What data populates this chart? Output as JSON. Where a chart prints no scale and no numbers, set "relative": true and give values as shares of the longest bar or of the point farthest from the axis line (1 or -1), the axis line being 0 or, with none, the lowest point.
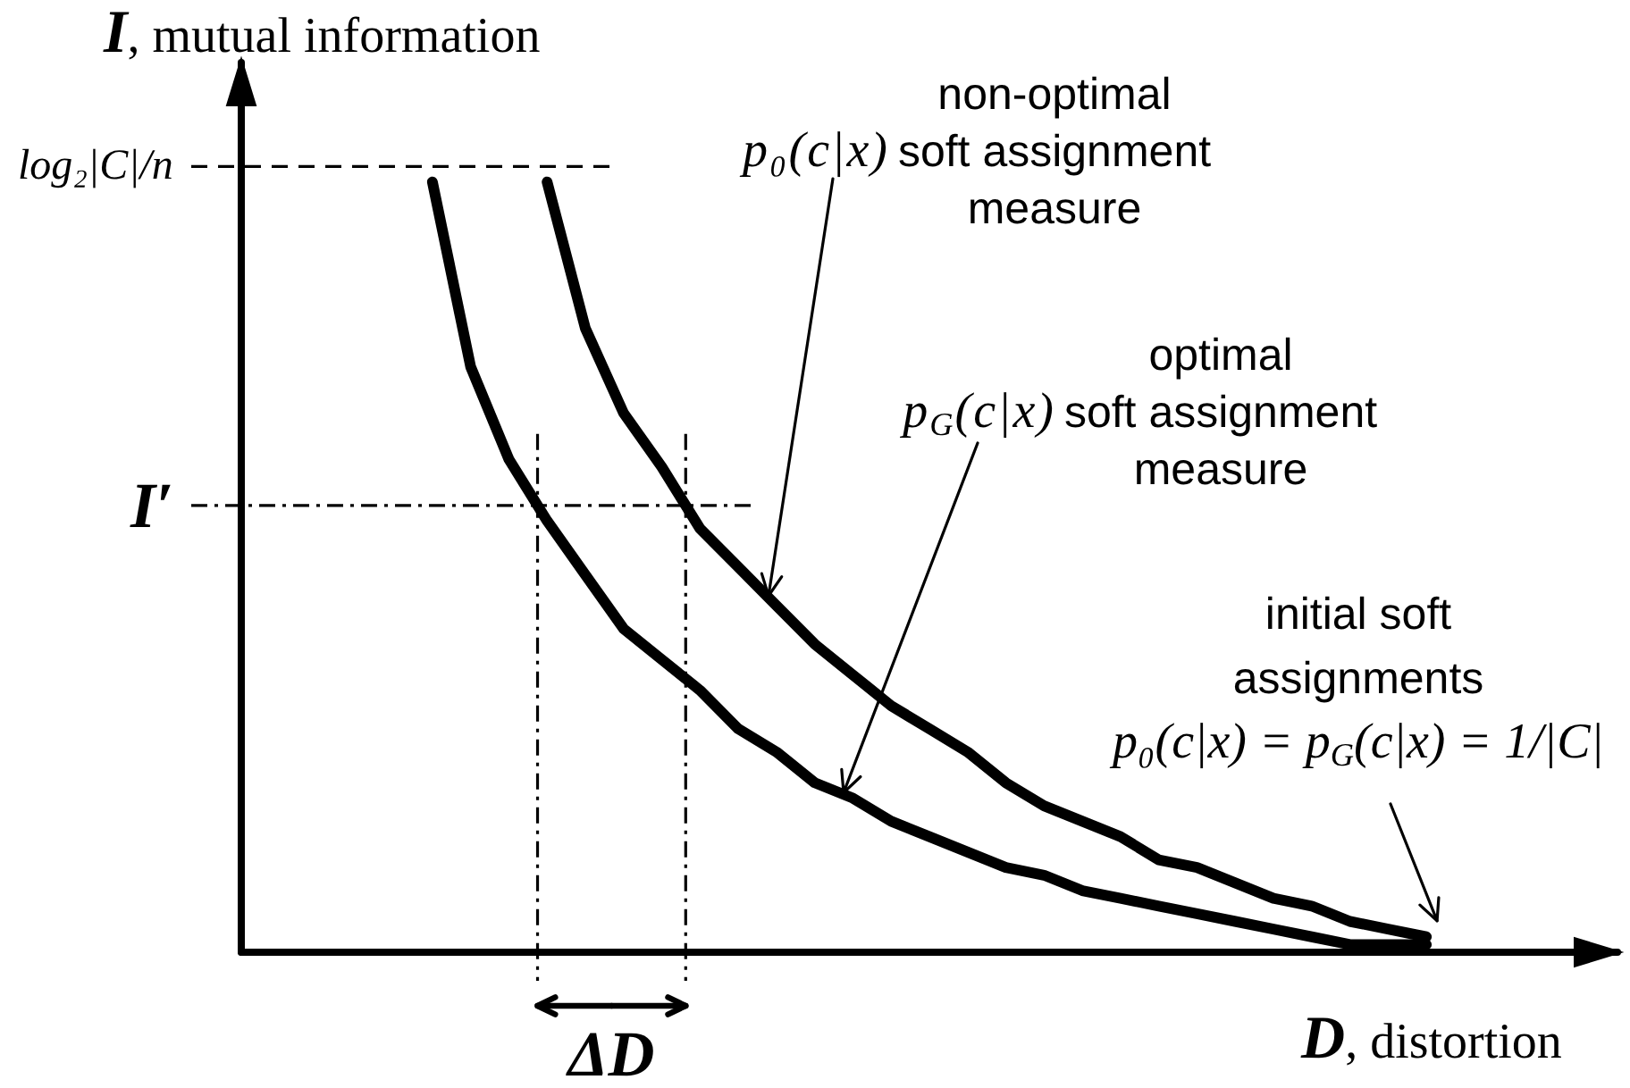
{
  "chart_data": {
    "type": "line",
    "relative": true,
    "xlabel": "D, distortion",
    "ylabel": "I, mutual information",
    "categories": [
      null,
      null,
      null,
      null,
      null,
      null,
      null,
      null,
      null,
      null,
      null,
      null,
      null,
      null,
      null,
      null,
      null,
      null,
      null,
      null,
      null,
      null,
      null,
      null,
      null,
      null,
      null,
      null,
      null,
      null,
      null,
      null,
      null,
      null,
      null,
      null,
      null
    ],
    "series": [
      {
        "name": "non-optimal\np₀(c|x) soft assignment\nmeasure",
        "color": "#000000",
        "values": [
          null,
          null,
          null,
          null,
          null,
          null,
          null,
          null,
          1.0,
          0.81,
          0.7,
          0.63,
          0.55,
          0.5,
          0.45,
          0.4,
          0.36,
          0.32,
          0.29,
          0.26,
          0.22,
          0.19,
          0.17,
          0.15,
          0.12,
          0.11,
          0.09,
          0.07,
          0.06,
          0.04,
          0.03,
          0.02,
          null,
          null,
          null,
          null,
          null
        ]
      },
      {
        "name": "optimal\np$_{G}$(c|x) soft assignment\nmeasure",
        "color": "#000000",
        "values": [
          null,
          null,
          null,
          null,
          null,
          1.0,
          0.76,
          0.64,
          0.56,
          0.49,
          0.42,
          0.38,
          0.34,
          0.29,
          0.26,
          0.22,
          0.2,
          0.17,
          0.15,
          0.13,
          0.11,
          0.1,
          0.08,
          0.07,
          0.06,
          0.05,
          0.04,
          0.03,
          0.02,
          0.01,
          0.01,
          0.01,
          null,
          null,
          null,
          null,
          null
        ]
      }
    ],
    "ref_lines": [
      {
        "axis": "y",
        "value": 1.02,
        "label": "log₂|C|/n",
        "line_style": "dashed"
      },
      {
        "axis": "y",
        "value": 0.58,
        "label": "I′",
        "line_style": "dashdot"
      }
    ],
    "annotations": [
      "initial soft\nassignments\np₀(c|x) = p$_{G}$(c|x) = 1/|C|",
      "ΔD"
    ],
    "marker": "none",
    "line_style": "solid"
  }
}
